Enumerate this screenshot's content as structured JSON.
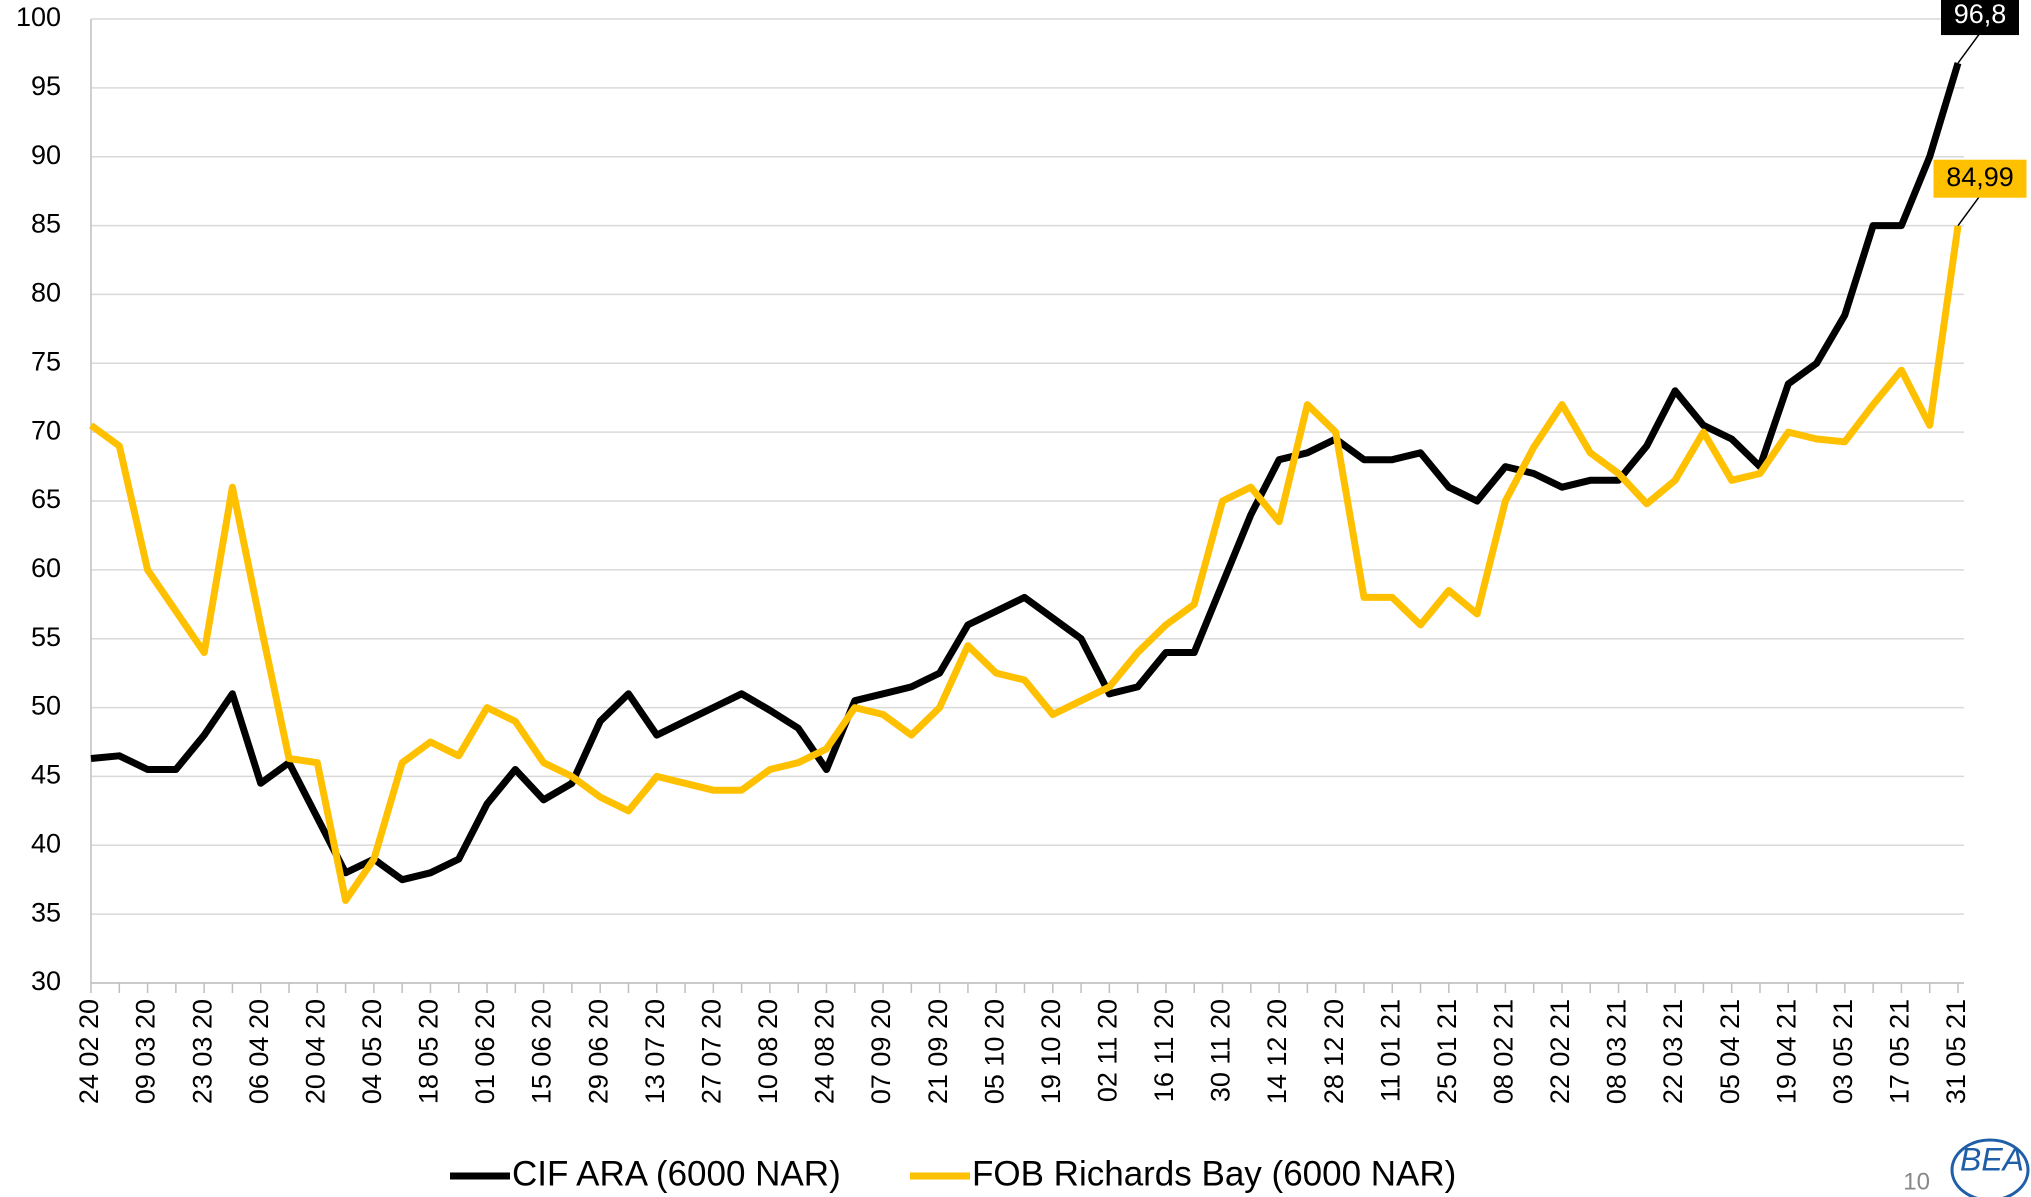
{
  "chart_data": {
    "type": "line",
    "categories": [
      "24 02 20",
      null,
      "09 03 20",
      null,
      "23 03 20",
      null,
      "06 04 20",
      null,
      "20 04 20",
      null,
      "04 05 20",
      null,
      "18 05 20",
      null,
      "01 06 20",
      null,
      "15 06 20",
      null,
      "29 06 20",
      null,
      "13 07 20",
      null,
      "27 07 20",
      null,
      "10 08 20",
      null,
      "24 08 20",
      null,
      "07 09 20",
      null,
      "21 09 20",
      null,
      "05 10 20",
      null,
      "19 10 20",
      null,
      "02 11 20",
      null,
      "16 11 20",
      null,
      "30 11 20",
      null,
      "14 12 20",
      null,
      "28 12 20",
      null,
      "11 01 21",
      null,
      "25 01 21",
      null,
      "08 02 21",
      null,
      "22 02 21",
      null,
      "08 03 21",
      null,
      "22 03 21",
      null,
      "05 04 21",
      null,
      "19 04 21",
      null,
      "03 05 21",
      null,
      "17 05 21",
      null,
      "31 05 21"
    ],
    "series": [
      {
        "name": "CIF ARA (6000 NAR)",
        "color": "#000000",
        "values": [
          46.3,
          46.5,
          45.5,
          45.5,
          48,
          51,
          44.5,
          46,
          42,
          38,
          39,
          37.5,
          38,
          39,
          43,
          45.5,
          43.3,
          44.5,
          49,
          51,
          48,
          49,
          50,
          51,
          49.8,
          48.5,
          45.5,
          50.5,
          51,
          51.5,
          52.5,
          56,
          57,
          58,
          56.5,
          55,
          51,
          51.5,
          54,
          54,
          59,
          64,
          68,
          68.5,
          69.5,
          68,
          68,
          68.5,
          66,
          65,
          67.5,
          67,
          66,
          66.5,
          66.5,
          69,
          73,
          70.5,
          69.5,
          67.5,
          73.5,
          75,
          78.5,
          85,
          85,
          90,
          96.8
        ],
        "value_labels": [
          null,
          null,
          null,
          null,
          null,
          null,
          null,
          null,
          null,
          null,
          null,
          null,
          null,
          null,
          null,
          null,
          null,
          null,
          null,
          null,
          null,
          null,
          null,
          null,
          null,
          null,
          null,
          null,
          null,
          null,
          null,
          null,
          null,
          null,
          null,
          null,
          null,
          null,
          null,
          null,
          null,
          null,
          null,
          null,
          null,
          null,
          null,
          null,
          null,
          null,
          null,
          null,
          null,
          null,
          null,
          null,
          null,
          null,
          null,
          null,
          null,
          null,
          null,
          null,
          null,
          null,
          "96,8"
        ]
      },
      {
        "name": "FOB Richards Bay (6000 NAR)",
        "color": "#ffc000",
        "values": [
          70.5,
          69,
          60,
          57,
          54,
          66,
          56,
          46.3,
          46,
          36,
          39,
          46,
          47.5,
          46.5,
          50,
          49,
          46,
          45,
          43.5,
          42.5,
          45,
          44.5,
          44,
          44,
          45.5,
          46,
          47,
          50,
          49.5,
          48,
          50,
          54.5,
          52.5,
          52,
          49.5,
          50.5,
          51.5,
          54,
          56,
          57.5,
          65,
          66,
          63.5,
          72,
          70,
          58,
          58,
          56,
          58.5,
          56.8,
          65,
          68.9,
          72,
          68.5,
          67,
          64.8,
          66.5,
          70,
          66.5,
          67,
          70,
          69.5,
          69.3,
          72,
          74.5,
          70.5,
          84.99
        ],
        "value_labels": [
          null,
          null,
          null,
          null,
          null,
          null,
          null,
          null,
          null,
          null,
          null,
          null,
          null,
          null,
          null,
          null,
          null,
          null,
          null,
          null,
          null,
          null,
          null,
          null,
          null,
          null,
          null,
          null,
          null,
          null,
          null,
          null,
          null,
          null,
          null,
          null,
          null,
          null,
          null,
          null,
          null,
          null,
          null,
          null,
          null,
          null,
          null,
          null,
          null,
          null,
          null,
          null,
          null,
          null,
          null,
          null,
          null,
          null,
          null,
          null,
          null,
          null,
          null,
          null,
          null,
          null,
          "84,99"
        ]
      }
    ],
    "ylim": [
      30,
      100
    ],
    "yticks": [
      30,
      35,
      40,
      45,
      50,
      55,
      60,
      65,
      70,
      75,
      80,
      85,
      90,
      95,
      100
    ],
    "grid": true,
    "legend": "bottom"
  },
  "footer": {
    "page_number": "10",
    "logo": "BEA"
  }
}
